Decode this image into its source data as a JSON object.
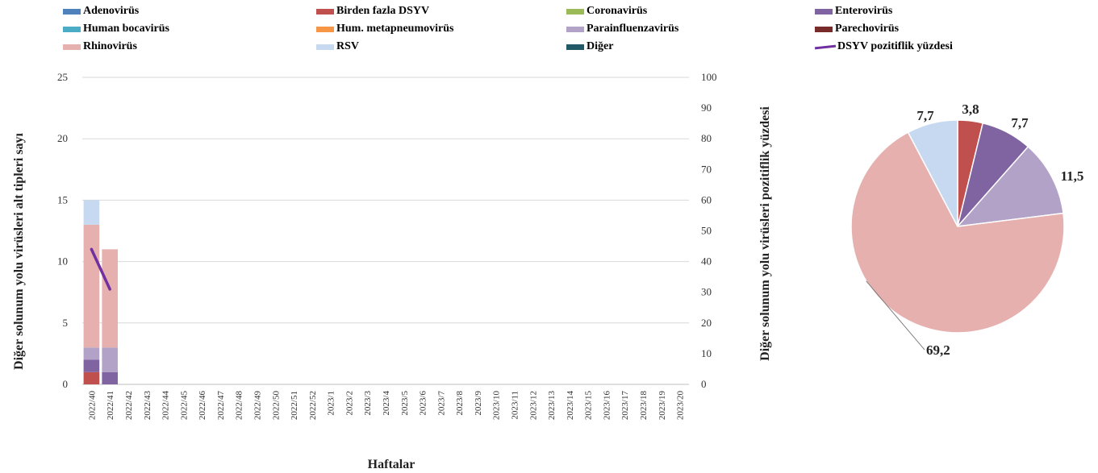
{
  "legend": [
    {
      "name": "Adenovirüs",
      "color": "#4f81bd",
      "kind": "box"
    },
    {
      "name": "Birden fazla DSYV",
      "color": "#c0504d",
      "kind": "box"
    },
    {
      "name": "Coronavirüs",
      "color": "#9bbb59",
      "kind": "box"
    },
    {
      "name": "Enterovirüs",
      "color": "#8064a2",
      "kind": "box"
    },
    {
      "name": "Human bocavirüs",
      "color": "#4bacc6",
      "kind": "box"
    },
    {
      "name": "Hum. metapneumovirüs",
      "color": "#f79646",
      "kind": "box"
    },
    {
      "name": "Parainfluenzavirüs",
      "color": "#b3a2c7",
      "kind": "box"
    },
    {
      "name": "Parechovirüs",
      "color": "#772c2a",
      "kind": "box"
    },
    {
      "name": "Rhinovirüs",
      "color": "#e6b0ae",
      "kind": "box"
    },
    {
      "name": "RSV",
      "color": "#c6d9f0",
      "kind": "box"
    },
    {
      "name": "Diğer",
      "color": "#215968",
      "kind": "box"
    },
    {
      "name": "DSYV pozitiflik yüzdesi",
      "color": "#7030a0",
      "kind": "line"
    }
  ],
  "chart_data": [
    {
      "type": "bar",
      "stacked": true,
      "xlabel": "Haftalar",
      "ylabel": "Diğer solunum yolu virüsleri alt tipleri sayı",
      "y2label": "Diğer solunum yolu virüsleri pozitiflik yüzdesi",
      "ylim": [
        0,
        25
      ],
      "y2lim": [
        0,
        100
      ],
      "yticks": [
        "0",
        "5",
        "10",
        "15",
        "20",
        "25"
      ],
      "y2ticks": [
        "0",
        "10",
        "20",
        "30",
        "40",
        "50",
        "60",
        "70",
        "80",
        "90",
        "100"
      ],
      "grid": true,
      "legend_position": "top",
      "categories": [
        "2022/40",
        "2022/41",
        "2022/42",
        "2022/43",
        "2022/44",
        "2022/45",
        "2022/46",
        "2022/47",
        "2022/48",
        "2022/49",
        "2022/50",
        "2022/51",
        "2022/52",
        "2023/1",
        "2023/2",
        "2023/3",
        "2023/4",
        "2023/5",
        "2023/6",
        "2023/7",
        "2023/8",
        "2023/9",
        "2023/10",
        "2023/11",
        "2023/12",
        "2023/13",
        "2023/14",
        "2023/15",
        "2023/16",
        "2023/17",
        "2023/18",
        "2023/19",
        "2023/20"
      ],
      "series": [
        {
          "name": "Birden fazla DSYV",
          "color": "#c0504d",
          "values": [
            1,
            0,
            0,
            0,
            0,
            0,
            0,
            0,
            0,
            0,
            0,
            0,
            0,
            0,
            0,
            0,
            0,
            0,
            0,
            0,
            0,
            0,
            0,
            0,
            0,
            0,
            0,
            0,
            0,
            0,
            0,
            0,
            0
          ]
        },
        {
          "name": "Enterovirüs",
          "color": "#8064a2",
          "values": [
            1,
            1,
            0,
            0,
            0,
            0,
            0,
            0,
            0,
            0,
            0,
            0,
            0,
            0,
            0,
            0,
            0,
            0,
            0,
            0,
            0,
            0,
            0,
            0,
            0,
            0,
            0,
            0,
            0,
            0,
            0,
            0,
            0
          ]
        },
        {
          "name": "Parainfluenzavirüs",
          "color": "#b3a2c7",
          "values": [
            1,
            2,
            0,
            0,
            0,
            0,
            0,
            0,
            0,
            0,
            0,
            0,
            0,
            0,
            0,
            0,
            0,
            0,
            0,
            0,
            0,
            0,
            0,
            0,
            0,
            0,
            0,
            0,
            0,
            0,
            0,
            0,
            0
          ]
        },
        {
          "name": "Rhinovirüs",
          "color": "#e6b0ae",
          "values": [
            10,
            8,
            0,
            0,
            0,
            0,
            0,
            0,
            0,
            0,
            0,
            0,
            0,
            0,
            0,
            0,
            0,
            0,
            0,
            0,
            0,
            0,
            0,
            0,
            0,
            0,
            0,
            0,
            0,
            0,
            0,
            0,
            0
          ]
        },
        {
          "name": "RSV",
          "color": "#c6d9f0",
          "values": [
            2,
            0,
            0,
            0,
            0,
            0,
            0,
            0,
            0,
            0,
            0,
            0,
            0,
            0,
            0,
            0,
            0,
            0,
            0,
            0,
            0,
            0,
            0,
            0,
            0,
            0,
            0,
            0,
            0,
            0,
            0,
            0,
            0
          ]
        }
      ],
      "line": {
        "name": "DSYV pozitiflik yüzdesi",
        "color": "#7030a0",
        "axis": "y2",
        "values": [
          44,
          31
        ]
      }
    },
    {
      "type": "pie",
      "slices": [
        {
          "name": "Birden fazla DSYV",
          "value": 3.8,
          "label": "3,8",
          "color": "#c0504d"
        },
        {
          "name": "Enterovirüs",
          "value": 7.7,
          "label": "7,7",
          "color": "#8064a2"
        },
        {
          "name": "Parainfluenzavirüs",
          "value": 11.5,
          "label": "11,5",
          "color": "#b3a2c7"
        },
        {
          "name": "Rhinovirüs",
          "value": 69.2,
          "label": "69,2",
          "color": "#e6b0ae"
        },
        {
          "name": "RSV",
          "value": 7.7,
          "label": "7,7",
          "color": "#c6d9f0"
        }
      ]
    }
  ]
}
